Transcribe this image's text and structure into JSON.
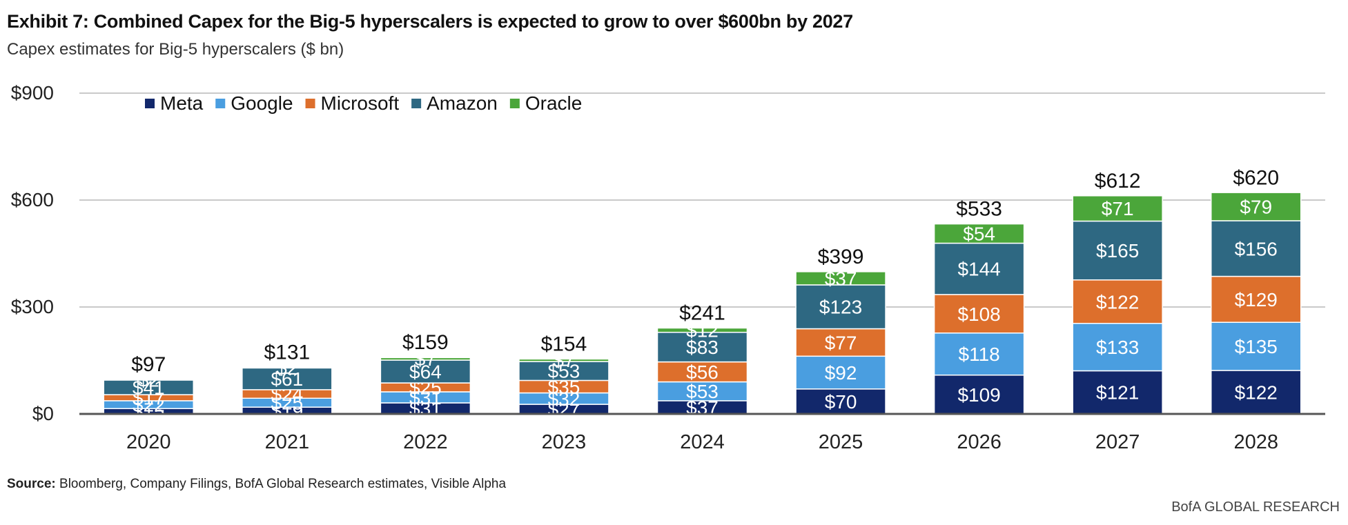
{
  "title": "Exhibit 7: Combined Capex for the Big-5 hyperscalers is expected to grow to over $600bn by 2027",
  "subtitle": "Capex estimates for Big-5 hyperscalers ($ bn)",
  "source_label": "Source:",
  "source_text": " Bloomberg, Company Filings, BofA Global Research estimates, Visible Alpha",
  "brand": "BofA GLOBAL RESEARCH",
  "colors": {
    "Meta": "#12286b",
    "Google": "#4a9ee0",
    "Microsoft": "#dd6f2c",
    "Amazon": "#2e6882",
    "Oracle": "#4ba63a",
    "grid": "#c9c9c9",
    "axis": "#555555"
  },
  "chart_data": {
    "type": "bar",
    "stacked": true,
    "title": "Exhibit 7: Combined Capex for the Big-5 hyperscalers is expected to grow to over $600bn by 2027",
    "subtitle": "Capex estimates for Big-5 hyperscalers ($ bn)",
    "xlabel": "",
    "ylabel": "",
    "ylim": [
      0,
      900
    ],
    "yticks": [
      0,
      300,
      600,
      900
    ],
    "ytick_labels": [
      "$0",
      "$300",
      "$600",
      "$900"
    ],
    "grid": true,
    "legend_position": "top-left",
    "categories": [
      "2020",
      "2021",
      "2022",
      "2023",
      "2024",
      "2025",
      "2026",
      "2027",
      "2028"
    ],
    "series": [
      {
        "name": "Meta",
        "values": [
          15,
          19,
          31,
          27,
          37,
          70,
          109,
          121,
          122
        ]
      },
      {
        "name": "Google",
        "values": [
          22,
          25,
          31,
          32,
          53,
          92,
          118,
          133,
          135
        ]
      },
      {
        "name": "Microsoft",
        "values": [
          17,
          24,
          25,
          35,
          56,
          77,
          108,
          122,
          129
        ]
      },
      {
        "name": "Amazon",
        "values": [
          41,
          61,
          64,
          53,
          83,
          123,
          144,
          165,
          156
        ]
      },
      {
        "name": "Oracle",
        "values": [
          2,
          2,
          7,
          7,
          12,
          37,
          54,
          71,
          79
        ]
      }
    ],
    "data_labels": [
      [
        "$15",
        "$19",
        "$31",
        "$27",
        "$37",
        "$70",
        "$109",
        "$121",
        "$122"
      ],
      [
        "$22",
        "$25",
        "$31",
        "$32",
        "$53",
        "$92",
        "$118",
        "$133",
        "$135"
      ],
      [
        "$17",
        "$24",
        "$25",
        "$35",
        "$56",
        "$77",
        "$108",
        "$122",
        "$129"
      ],
      [
        "$41",
        "$61",
        "$64",
        "$53",
        "$83",
        "$123",
        "$144",
        "$165",
        "$156"
      ],
      [
        "$2",
        "$2",
        "$7",
        "$7",
        "$12",
        "$37",
        "$54",
        "$71",
        "$79"
      ]
    ],
    "totals": [
      97,
      131,
      159,
      154,
      241,
      399,
      533,
      612,
      620
    ],
    "total_labels": [
      "$97",
      "$131",
      "$159",
      "$154",
      "$241",
      "$399",
      "$533",
      "$612",
      "$620"
    ]
  }
}
